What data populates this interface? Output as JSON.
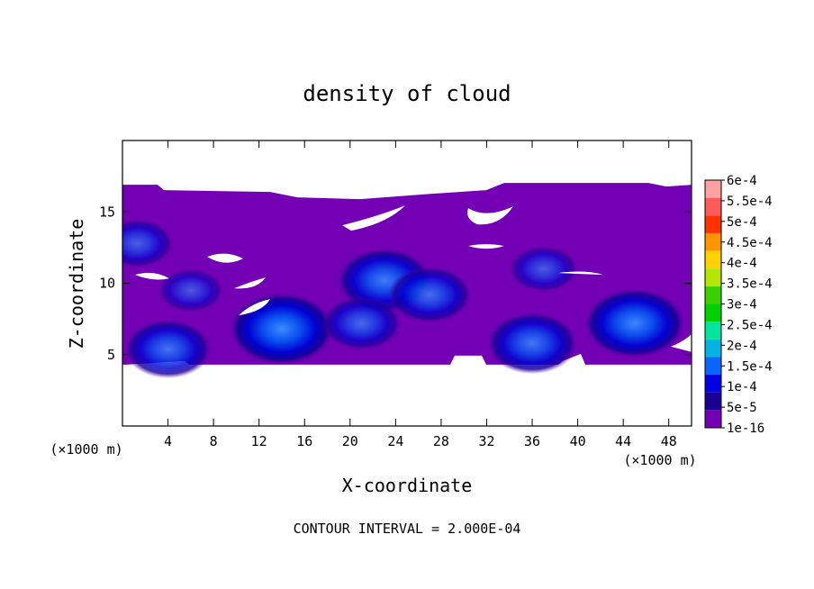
{
  "chart_data": {
    "type": "heatmap",
    "title": "density of cloud",
    "xlabel": "X-coordinate",
    "ylabel": "Z-coordinate",
    "x_unit_label": "(×1000 m)",
    "x_unit_label_right": "(×1000 m)",
    "xlim": [
      0,
      50
    ],
    "ylim": [
      0,
      20
    ],
    "x_ticks": [
      4,
      8,
      12,
      16,
      20,
      24,
      28,
      32,
      36,
      40,
      44,
      48
    ],
    "x_tick_labels": [
      "4",
      "8",
      "12",
      "16",
      "20",
      "24",
      "28",
      "32",
      "36",
      "40",
      "44",
      "48"
    ],
    "y_ticks": [
      5,
      10,
      15
    ],
    "y_tick_labels": [
      "5",
      "10",
      "15"
    ],
    "colorbar": {
      "labels": [
        "1e-16",
        "5e-5",
        "1e-4",
        "1.5e-4",
        "2e-4",
        "2.5e-4",
        "3e-4",
        "3.5e-4",
        "4e-4",
        "4.5e-4",
        "5e-4",
        "5.5e-4",
        "6e-4"
      ],
      "colors": [
        "#7300b4",
        "#1c0096",
        "#0000e6",
        "#0a64ff",
        "#00b4e6",
        "#00e6a0",
        "#00d200",
        "#3cd200",
        "#b4e600",
        "#ffd200",
        "#ff9600",
        "#ff3200",
        "#ff5a5a",
        "#ffa0a0"
      ]
    },
    "cloud_extent": {
      "z_bottom_km": 4.3,
      "z_top_km": 16.9
    },
    "cores": [
      {
        "x_km": 4,
        "z_km": 5.4,
        "max_density": 0.0001
      },
      {
        "x_km": 14,
        "z_km": 6.8,
        "max_density": 0.00015
      },
      {
        "x_km": 23,
        "z_km": 10.2,
        "max_density": 0.00012
      },
      {
        "x_km": 27,
        "z_km": 9.2,
        "max_density": 9e-05
      },
      {
        "x_km": 21,
        "z_km": 7.2,
        "max_density": 8e-05
      },
      {
        "x_km": 36,
        "z_km": 5.8,
        "max_density": 0.00011
      },
      {
        "x_km": 45,
        "z_km": 7.2,
        "max_density": 0.00014
      },
      {
        "x_km": 1.3,
        "z_km": 12.8,
        "max_density": 6e-05
      },
      {
        "x_km": 6,
        "z_km": 9.5,
        "max_density": 4e-05
      },
      {
        "x_km": 37,
        "z_km": 11,
        "max_density": 5e-05
      }
    ],
    "footer_text": "CONTOUR INTERVAL = 2.000E-04"
  }
}
